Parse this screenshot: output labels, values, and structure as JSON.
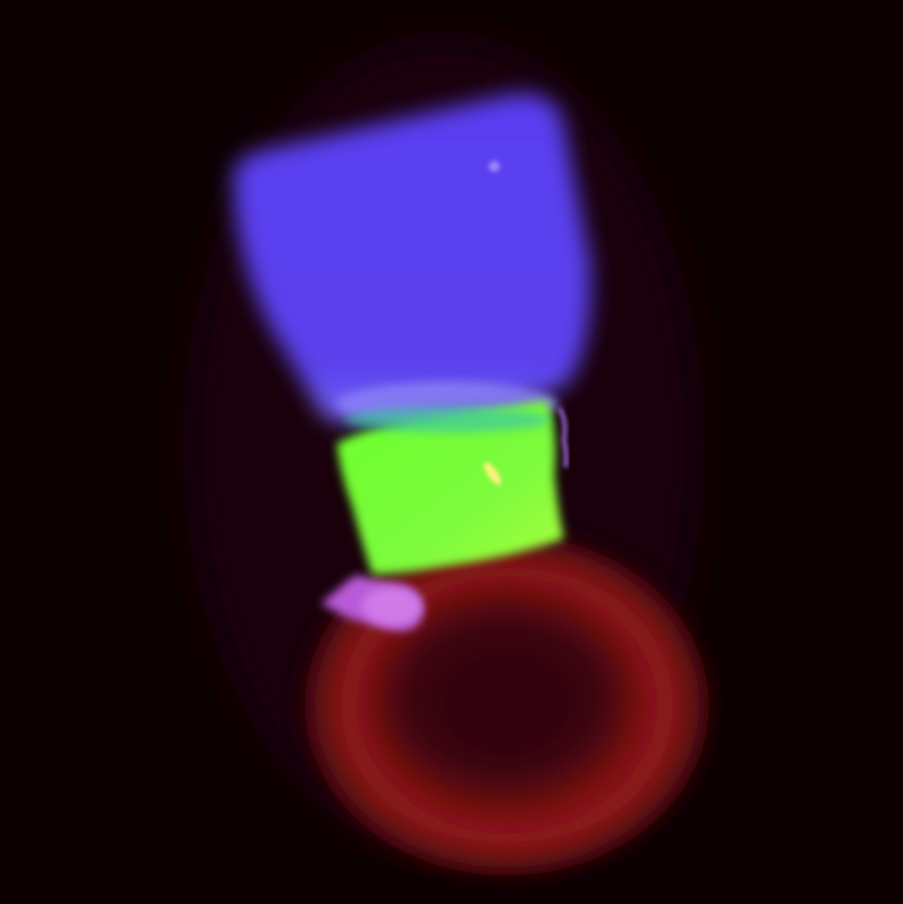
{
  "image": {
    "description_type": "fluorescence-volume-render",
    "background_color": "#0d0003",
    "regions": [
      {
        "name": "blue-region",
        "color": "#5a3ff0"
      },
      {
        "name": "green-region",
        "color": "#78ff3a"
      },
      {
        "name": "red-region",
        "color": "#8a1010"
      },
      {
        "name": "magenta-region",
        "color": "#c060e0"
      }
    ]
  }
}
